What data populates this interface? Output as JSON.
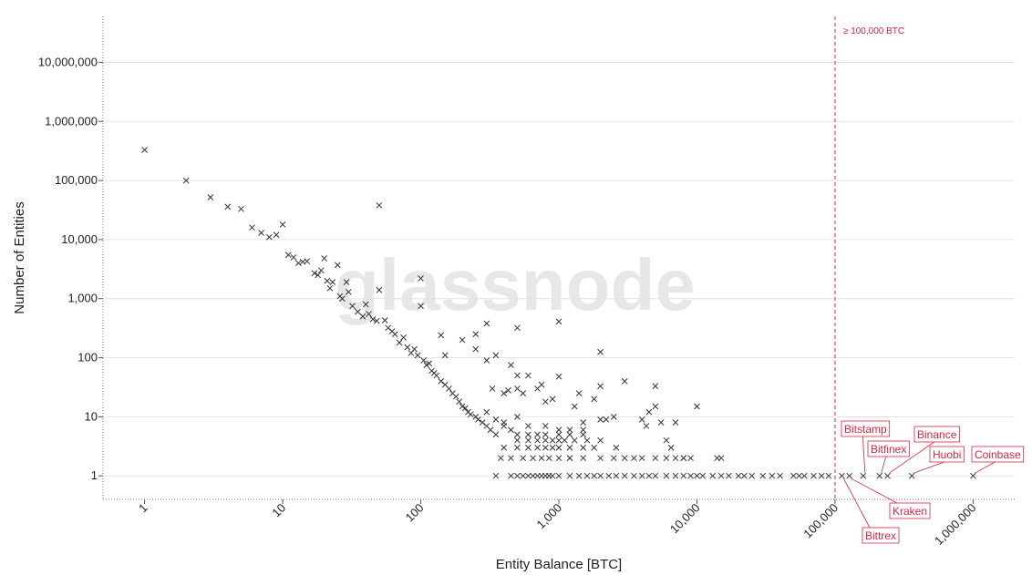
{
  "chart_data": {
    "type": "scatter",
    "x_label": "Entity Balance [BTC]",
    "y_label": "Number of Entities",
    "watermark": "glassnode",
    "log_x": true,
    "log_y": true,
    "grid": true,
    "color": "#333333",
    "annotation_color": "#d8283f",
    "xlim": [
      0.5,
      2000000
    ],
    "ylim": [
      0.4,
      60000000
    ],
    "xticks": [
      1,
      10,
      100,
      {
        "value": 1000,
        "label": "1,000"
      },
      {
        "value": 10000,
        "label": "10,000"
      },
      {
        "value": 100000,
        "label": "100,000"
      },
      {
        "value": 1000000,
        "label": "1,000,000"
      }
    ],
    "yticks": [
      1,
      10,
      100,
      {
        "value": 1000,
        "label": "1,000"
      },
      {
        "value": 10000,
        "label": "10,000"
      },
      {
        "value": 100000,
        "label": "100,000"
      },
      {
        "value": 1000000,
        "label": "1,000,000"
      },
      {
        "value": 10000000,
        "label": "10,000,000"
      }
    ],
    "threshold": {
      "value": 100000,
      "label": "≥ 100,000 BTC"
    },
    "x": [
      1,
      2,
      3,
      4,
      5,
      6,
      7,
      8,
      9,
      10,
      11,
      12,
      13,
      14,
      15,
      17,
      18,
      19,
      20,
      21,
      22,
      23,
      25,
      26,
      27,
      29,
      30,
      32,
      35,
      38,
      40,
      42,
      45,
      48,
      50,
      50,
      55,
      58,
      62,
      65,
      70,
      75,
      80,
      85,
      90,
      95,
      100,
      100,
      105,
      110,
      115,
      120,
      125,
      130,
      140,
      150,
      160,
      170,
      180,
      190,
      200,
      210,
      220,
      230,
      250,
      260,
      280,
      300,
      320,
      350,
      140,
      150,
      200,
      250,
      300,
      250,
      350,
      300,
      330,
      400,
      430,
      450,
      500,
      500,
      500,
      550,
      600,
      700,
      800,
      750,
      1000,
      1000,
      900,
      1300,
      1500,
      1400,
      1800,
      2000,
      2000,
      2000,
      2200,
      2500,
      3000,
      2600,
      3500,
      4000,
      4300,
      4500,
      5000,
      5000,
      5500,
      6000,
      6500,
      7000,
      8000,
      10000,
      14000,
      400,
      450,
      500,
      400,
      500,
      600,
      700,
      800,
      900,
      1000,
      1200,
      1500,
      1800,
      500,
      600,
      700,
      800,
      900,
      1000,
      1100,
      1300,
      1600,
      2000,
      380,
      450,
      550,
      650,
      750,
      850,
      1000,
      1200,
      1500,
      2000,
      2500,
      3000,
      4000,
      5000,
      6000,
      7000,
      8000,
      9000,
      15000,
      1200,
      350,
      450,
      500,
      550,
      600,
      650,
      700,
      750,
      800,
      850,
      900,
      1000,
      1200,
      1400,
      1600,
      1800,
      2000,
      2300,
      2600,
      3000,
      3500,
      4000,
      4500,
      5000,
      6000,
      7000,
      8000,
      9000,
      10000,
      11000,
      13000,
      15000,
      17000,
      20000,
      22000,
      25000,
      30000,
      35000,
      40000,
      50000,
      55000,
      60000,
      70000,
      80000,
      90000,
      500,
      600,
      700,
      800,
      1000,
      1200,
      1500,
      300,
      350,
      400,
      600,
      800,
      1000,
      1200,
      1500
    ],
    "values": [
      330000,
      100000,
      52000,
      36000,
      33000,
      16000,
      13000,
      11000,
      12000,
      18000,
      5500,
      5000,
      4000,
      4200,
      4300,
      2700,
      2500,
      3000,
      4800,
      2000,
      1500,
      1900,
      3700,
      1100,
      1000,
      1900,
      1300,
      750,
      600,
      500,
      800,
      550,
      450,
      420,
      38000,
      1400,
      430,
      320,
      280,
      250,
      180,
      220,
      150,
      120,
      140,
      110,
      2200,
      750,
      90,
      75,
      80,
      60,
      55,
      50,
      40,
      35,
      30,
      25,
      22,
      18,
      15,
      14,
      12,
      11,
      10,
      9,
      8,
      7,
      6,
      5,
      240,
      110,
      200,
      140,
      380,
      250,
      110,
      90,
      30,
      25,
      28,
      75,
      320,
      50,
      30,
      25,
      50,
      30,
      18,
      35,
      410,
      48,
      20,
      15,
      8,
      25,
      20,
      125,
      33,
      9,
      9,
      10,
      40,
      3,
      2,
      9,
      7,
      12,
      33,
      15,
      8,
      4,
      3,
      8,
      2,
      15,
      2,
      8,
      6,
      10,
      3,
      3,
      3,
      3,
      3,
      3,
      3,
      3,
      3,
      3,
      4,
      4,
      4,
      4,
      4,
      4,
      4,
      4,
      4,
      4,
      2,
      2,
      2,
      2,
      2,
      2,
      2,
      2,
      2,
      2,
      2,
      2,
      2,
      2,
      2,
      2,
      2,
      2,
      2,
      2,
      1,
      1,
      1,
      1,
      1,
      1,
      1,
      1,
      1,
      1,
      1,
      1,
      1,
      1,
      1,
      1,
      1,
      1,
      1,
      1,
      1,
      1,
      1,
      1,
      1,
      1,
      1,
      1,
      1,
      1,
      1,
      1,
      1,
      1,
      1,
      1,
      1,
      1,
      1,
      1,
      1,
      1,
      1,
      1,
      1,
      5,
      5,
      5,
      5,
      5,
      5,
      5,
      12,
      9,
      7,
      7,
      7,
      6,
      6,
      6
    ],
    "annotations": [
      {
        "label": "Bitstamp",
        "x": 160000,
        "y": 1
      },
      {
        "label": "Bitfinex",
        "x": 210000,
        "y": 1
      },
      {
        "label": "Binance",
        "x": 240000,
        "y": 1
      },
      {
        "label": "Huobi",
        "x": 360000,
        "y": 1
      },
      {
        "label": "Coinbase",
        "x": 1000000,
        "y": 1
      },
      {
        "label": "Kraken",
        "x": 127000,
        "y": 1
      },
      {
        "label": "Bittrex",
        "x": 112000,
        "y": 1
      }
    ]
  }
}
